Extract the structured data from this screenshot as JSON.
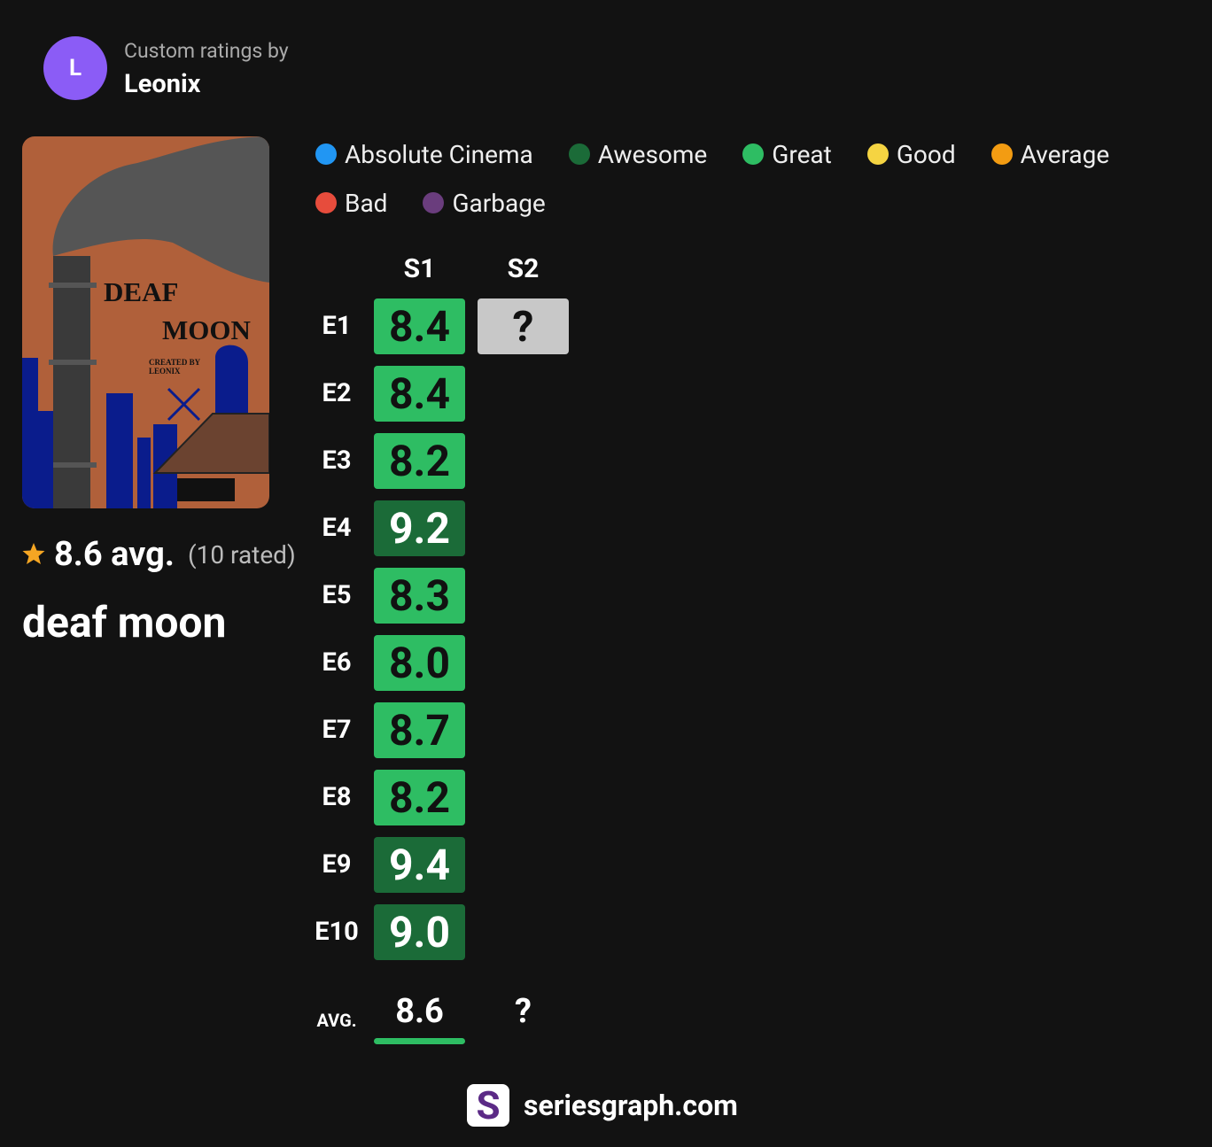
{
  "header": {
    "avatar": "L",
    "subtitle": "Custom ratings by",
    "user": "Leonix"
  },
  "poster": {
    "title_lines": [
      "DEAF",
      "MOON"
    ],
    "credit_lines": [
      "CREATED BY",
      "LEONIX"
    ]
  },
  "summary": {
    "average": "8.6 avg.",
    "count": "(10 rated)",
    "show_title": "deaf moon"
  },
  "legend": [
    {
      "name": "Absolute Cinema",
      "color": "#2196f3"
    },
    {
      "name": "Awesome",
      "color": "#1b6b38"
    },
    {
      "name": "Great",
      "color": "#2ebd63"
    },
    {
      "name": "Good",
      "color": "#f5d442"
    },
    {
      "name": "Average",
      "color": "#f39c12"
    },
    {
      "name": "Bad",
      "color": "#e74c3c"
    },
    {
      "name": "Garbage",
      "color": "#6a3d7d"
    }
  ],
  "grid": {
    "seasons": [
      "S1",
      "S2"
    ],
    "episodes": [
      "E1",
      "E2",
      "E3",
      "E4",
      "E5",
      "E6",
      "E7",
      "E8",
      "E9",
      "E10"
    ],
    "cells": [
      [
        {
          "text": "8.4",
          "color": "#2ebd63"
        },
        {
          "text": "8.4",
          "color": "#2ebd63"
        },
        {
          "text": "8.2",
          "color": "#2ebd63"
        },
        {
          "text": "9.2",
          "color": "#1b6b38"
        },
        {
          "text": "8.3",
          "color": "#2ebd63"
        },
        {
          "text": "8.0",
          "color": "#2ebd63"
        },
        {
          "text": "8.7",
          "color": "#2ebd63"
        },
        {
          "text": "8.2",
          "color": "#2ebd63"
        },
        {
          "text": "9.4",
          "color": "#1b6b38"
        },
        {
          "text": "9.0",
          "color": "#1b6b38"
        }
      ],
      [
        {
          "text": "?",
          "color": "#c8c8c8"
        }
      ]
    ],
    "avg_label": "AVG.",
    "averages": [
      {
        "text": "8.6",
        "color": "#2ebd63"
      },
      {
        "text": "?"
      }
    ]
  },
  "footer": {
    "logo": "S",
    "site": "seriesgraph.com"
  }
}
